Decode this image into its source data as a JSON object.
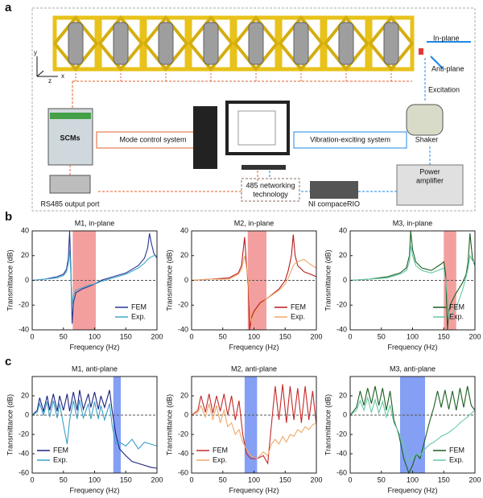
{
  "panels": [
    "a",
    "b",
    "c"
  ],
  "diagram": {
    "axes": [
      "y",
      "x",
      "z"
    ],
    "in_plane": "In-plane",
    "anti_plane": "Anti-plane",
    "excitation": "Excitation",
    "scms": "SCMs",
    "mode_control": "Mode control system",
    "vibration_exciting": "Vibration-exciting system",
    "shaker": "Shaker",
    "power_amplifier": [
      "Power",
      "amplifier"
    ],
    "network": [
      "485 networking",
      "technology"
    ],
    "rs485": "RS485 output port",
    "ni": "NI compaceRIO"
  },
  "chart_data": [
    {
      "type": "line",
      "title": "M1, in-plane",
      "xlabel": "Frequency (Hz)",
      "ylabel": "Transmittance (dB)",
      "xlim": [
        0,
        200
      ],
      "ylim": [
        -40,
        40
      ],
      "xticks": [
        0,
        50,
        100,
        150,
        200
      ],
      "yticks": [
        -40,
        -20,
        0,
        20,
        40
      ],
      "band": [
        65,
        102
      ],
      "band_color": "#f07f7f",
      "reference_line": 0,
      "legend": "lower right",
      "series": [
        {
          "name": "FEM",
          "color": "#283593",
          "x": [
            0,
            20,
            40,
            50,
            55,
            58,
            60,
            62,
            64,
            66,
            70,
            80,
            90,
            100,
            110,
            130,
            150,
            170,
            180,
            185,
            188,
            191,
            195,
            200
          ],
          "values": [
            0,
            1,
            3,
            5,
            9,
            18,
            40,
            10,
            -35,
            -18,
            -10,
            -7,
            -5,
            -3,
            0,
            3,
            6,
            12,
            18,
            26,
            38,
            30,
            22,
            18
          ]
        },
        {
          "name": "Exp.",
          "color": "#40a8c8",
          "x": [
            0,
            20,
            40,
            50,
            55,
            58,
            60,
            62,
            64,
            66,
            70,
            80,
            90,
            100,
            110,
            130,
            150,
            170,
            180,
            185,
            188,
            191,
            195,
            200
          ],
          "values": [
            0,
            1,
            2,
            4,
            7,
            14,
            25,
            5,
            -20,
            -12,
            -8,
            -6,
            -4,
            -3,
            -1,
            2,
            5,
            10,
            14,
            17,
            18,
            19,
            20,
            20
          ]
        }
      ]
    },
    {
      "type": "line",
      "title": "M2, in-plane",
      "xlabel": "Frequency (Hz)",
      "ylabel": "Transmittance (dB)",
      "xlim": [
        0,
        200
      ],
      "ylim": [
        -40,
        40
      ],
      "xticks": [
        0,
        50,
        100,
        150,
        200
      ],
      "yticks": [
        -40,
        -20,
        0,
        20,
        40
      ],
      "band": [
        90,
        120
      ],
      "band_color": "#f07f7f",
      "reference_line": 0,
      "legend": "lower right",
      "series": [
        {
          "name": "FEM",
          "color": "#b71c1c",
          "x": [
            0,
            30,
            60,
            75,
            80,
            85,
            88,
            91,
            93,
            96,
            100,
            110,
            120,
            140,
            150,
            155,
            160,
            163,
            166,
            170,
            180,
            190,
            200
          ],
          "values": [
            0,
            1,
            2,
            6,
            12,
            35,
            12,
            -5,
            -40,
            -30,
            -25,
            -18,
            -15,
            -7,
            0,
            8,
            20,
            37,
            20,
            12,
            7,
            5,
            3
          ]
        },
        {
          "name": "Exp.",
          "color": "#f0a868",
          "x": [
            0,
            30,
            60,
            75,
            80,
            85,
            88,
            91,
            93,
            96,
            100,
            110,
            120,
            140,
            150,
            155,
            160,
            163,
            166,
            170,
            180,
            190,
            200
          ],
          "values": [
            0,
            1,
            1,
            5,
            9,
            20,
            10,
            0,
            -20,
            -35,
            -28,
            -20,
            -15,
            -8,
            -3,
            2,
            8,
            12,
            14,
            15,
            17,
            13,
            10
          ]
        }
      ]
    },
    {
      "type": "line",
      "title": "M3, in-plane",
      "xlabel": "Frequency (Hz)",
      "ylabel": "Transmittance (dB)",
      "xlim": [
        0,
        200
      ],
      "ylim": [
        -40,
        40
      ],
      "xticks": [
        0,
        50,
        100,
        150,
        200
      ],
      "yticks": [
        -40,
        -20,
        0,
        20,
        40
      ],
      "band": [
        150,
        170
      ],
      "band_color": "#f07f7f",
      "reference_line": 0,
      "legend": "lower right",
      "series": [
        {
          "name": "FEM",
          "color": "#1b5e20",
          "x": [
            0,
            30,
            60,
            80,
            90,
            95,
            97,
            100,
            105,
            115,
            130,
            145,
            150,
            153,
            156,
            158,
            162,
            170,
            180,
            186,
            189,
            192,
            196,
            200
          ],
          "values": [
            0,
            1,
            3,
            6,
            10,
            20,
            40,
            25,
            15,
            10,
            8,
            13,
            15,
            5,
            -40,
            -25,
            -18,
            -10,
            -2,
            5,
            15,
            38,
            18,
            12
          ]
        },
        {
          "name": "Exp.",
          "color": "#66c8a8",
          "x": [
            0,
            30,
            60,
            80,
            90,
            95,
            97,
            100,
            105,
            115,
            130,
            145,
            150,
            153,
            156,
            158,
            162,
            170,
            180,
            186,
            189,
            192,
            196,
            200
          ],
          "values": [
            0,
            1,
            2,
            5,
            8,
            15,
            28,
            20,
            12,
            8,
            6,
            9,
            10,
            0,
            -15,
            -30,
            -28,
            -22,
            -8,
            3,
            10,
            20,
            16,
            14
          ]
        }
      ]
    },
    {
      "type": "line",
      "title": "M1, anti-plane",
      "xlabel": "Frequency (Hz)",
      "ylabel": "Transmittance (dB)",
      "xlim": [
        0,
        200
      ],
      "ylim": [
        -60,
        40
      ],
      "xticks": [
        0,
        50,
        100,
        150,
        200
      ],
      "yticks": [
        -60,
        -40,
        -20,
        0,
        20
      ],
      "band": [
        130,
        142
      ],
      "band_color": "#5b7ff0",
      "reference_line": 0,
      "legend": "lower left",
      "series": [
        {
          "name": "FEM",
          "color": "#1a237e",
          "x": [
            0,
            8,
            12,
            18,
            24,
            28,
            34,
            40,
            44,
            50,
            56,
            60,
            66,
            72,
            76,
            82,
            90,
            94,
            100,
            106,
            110,
            116,
            124,
            128,
            134,
            140,
            150,
            160,
            170,
            180,
            190,
            200
          ],
          "values": [
            0,
            5,
            18,
            4,
            20,
            5,
            22,
            4,
            20,
            5,
            22,
            4,
            24,
            5,
            26,
            6,
            22,
            8,
            24,
            6,
            20,
            8,
            26,
            5,
            -20,
            -35,
            -42,
            -48,
            -50,
            -52,
            -54,
            -55
          ]
        },
        {
          "name": "Exp.",
          "color": "#3aa0c8",
          "x": [
            0,
            8,
            12,
            18,
            24,
            28,
            34,
            40,
            44,
            50,
            56,
            60,
            66,
            72,
            76,
            82,
            90,
            94,
            100,
            106,
            110,
            116,
            124,
            128,
            134,
            140,
            150,
            160,
            170,
            180,
            190,
            200
          ],
          "values": [
            0,
            3,
            12,
            0,
            14,
            -2,
            15,
            -3,
            12,
            -10,
            -30,
            -5,
            15,
            -4,
            16,
            -3,
            12,
            -4,
            14,
            -4,
            10,
            -5,
            12,
            -10,
            -30,
            -28,
            -32,
            -25,
            -35,
            -28,
            -30,
            -32
          ]
        }
      ]
    },
    {
      "type": "line",
      "title": "M2, anti-plane",
      "xlabel": "Frequency (Hz)",
      "ylabel": "Transmittance (dB)",
      "xlim": [
        0,
        200
      ],
      "ylim": [
        -60,
        40
      ],
      "xticks": [
        0,
        50,
        100,
        150,
        200
      ],
      "yticks": [
        -60,
        -40,
        -20,
        0,
        20
      ],
      "band": [
        85,
        105
      ],
      "band_color": "#5b7ff0",
      "reference_line": 0,
      "legend": "lower left",
      "series": [
        {
          "name": "FEM",
          "color": "#c62828",
          "x": [
            0,
            10,
            15,
            22,
            28,
            34,
            40,
            46,
            52,
            58,
            64,
            70,
            76,
            82,
            88,
            95,
            105,
            115,
            122,
            128,
            134,
            140,
            146,
            152,
            158,
            164,
            170,
            176,
            182,
            188,
            194,
            200
          ],
          "values": [
            0,
            5,
            20,
            3,
            22,
            2,
            20,
            4,
            22,
            0,
            20,
            -5,
            15,
            -20,
            -40,
            -45,
            -45,
            -42,
            -50,
            -10,
            30,
            -5,
            32,
            -8,
            30,
            -5,
            28,
            -8,
            30,
            -5,
            25,
            -10
          ]
        },
        {
          "name": "Exp.",
          "color": "#f0a868",
          "x": [
            0,
            10,
            15,
            22,
            28,
            34,
            40,
            46,
            52,
            58,
            64,
            70,
            76,
            82,
            88,
            95,
            105,
            115,
            122,
            128,
            134,
            140,
            146,
            152,
            158,
            164,
            170,
            176,
            182,
            188,
            194,
            200
          ],
          "values": [
            0,
            3,
            10,
            -2,
            12,
            -5,
            10,
            -8,
            5,
            -12,
            -8,
            -20,
            -15,
            -28,
            -35,
            -42,
            -45,
            -38,
            -42,
            -30,
            -25,
            -30,
            -22,
            -28,
            -20,
            -22,
            -15,
            -18,
            -12,
            -15,
            -10,
            -8
          ]
        }
      ]
    },
    {
      "type": "line",
      "title": "M3, anti-plane",
      "xlabel": "Frequency (Hz)",
      "ylabel": "Transmittance (dB)",
      "xlim": [
        0,
        200
      ],
      "ylim": [
        -60,
        40
      ],
      "xticks": [
        0,
        50,
        100,
        150,
        200
      ],
      "yticks": [
        -60,
        -40,
        -20,
        0,
        20
      ],
      "band": [
        80,
        120
      ],
      "band_color": "#5b7ff0",
      "reference_line": 0,
      "legend": "lower right",
      "series": [
        {
          "name": "FEM",
          "color": "#1b5e20",
          "x": [
            0,
            10,
            16,
            22,
            28,
            34,
            40,
            46,
            52,
            58,
            64,
            70,
            78,
            86,
            94,
            100,
            106,
            112,
            120,
            128,
            134,
            140,
            146,
            152,
            158,
            164,
            170,
            176,
            182,
            188,
            194,
            200
          ],
          "values": [
            0,
            8,
            25,
            10,
            28,
            12,
            30,
            10,
            28,
            5,
            25,
            -5,
            -20,
            -45,
            -60,
            -52,
            -40,
            -45,
            -25,
            -5,
            8,
            25,
            8,
            26,
            6,
            25,
            5,
            28,
            8,
            30,
            10,
            5
          ]
        },
        {
          "name": "Exp.",
          "color": "#66c8a8",
          "x": [
            0,
            10,
            16,
            22,
            28,
            34,
            40,
            46,
            52,
            58,
            64,
            70,
            78,
            86,
            94,
            100,
            106,
            112,
            120,
            128,
            134,
            140,
            146,
            152,
            158,
            164,
            170,
            176,
            182,
            188,
            194,
            200
          ],
          "values": [
            0,
            5,
            15,
            5,
            18,
            3,
            16,
            2,
            14,
            -2,
            10,
            -8,
            -18,
            -30,
            -48,
            -45,
            -40,
            -42,
            -35,
            -30,
            -28,
            -25,
            -22,
            -20,
            -18,
            -15,
            -12,
            -8,
            -5,
            -2,
            2,
            5
          ]
        }
      ]
    }
  ]
}
